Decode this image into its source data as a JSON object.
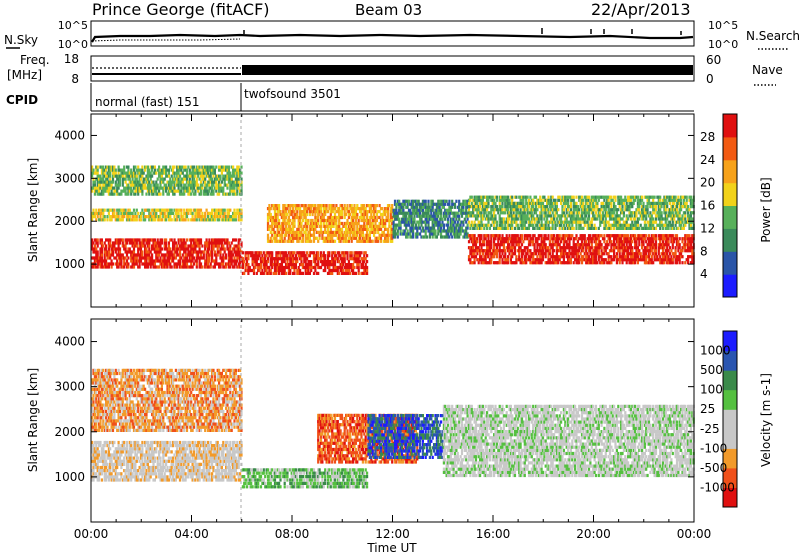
{
  "header": {
    "station": "Prince George (fitACF)",
    "beam": "Beam 03",
    "date": "22/Apr/2013"
  },
  "noise_panel": {
    "left_label": "N.Sky",
    "right_label": "N.Search",
    "left_ticks": [
      "10^5",
      "10^0"
    ],
    "right_ticks": [
      "10^5",
      "10^0"
    ]
  },
  "freq_panel": {
    "left_label_1": "Freq.",
    "left_label_2": "[MHz]",
    "left_ticks": [
      "18",
      "8"
    ],
    "right_label": "Nave",
    "right_ticks": [
      "60",
      "0"
    ]
  },
  "cpid_panel": {
    "label": "CPID",
    "modes": [
      {
        "name": "normal (fast) 151",
        "start_hour": 0,
        "end_hour": 6
      },
      {
        "name": "twofsound 3501",
        "start_hour": 6,
        "end_hour": 24
      }
    ]
  },
  "colors": {
    "power_scale": [
      "#1c1cff",
      "#2a55a8",
      "#3a8a5a",
      "#57b05a",
      "#f2d21a",
      "#f7a21a",
      "#f25a12",
      "#e01010"
    ],
    "velocity_scale": [
      "#e01010",
      "#f0501a",
      "#f29a2a",
      "#c8c8c8",
      "#c8c8c8",
      "#55c040",
      "#3a8a4a",
      "#2a55b0",
      "#1c1cff"
    ]
  },
  "chart_data": [
    {
      "type": "heatmap",
      "title": "Power",
      "ylabel": "Slant Range [km]",
      "xlabel": "Time UT",
      "yticks": [
        "1000",
        "2000",
        "3000",
        "4000"
      ],
      "xticks": [
        "00:00",
        "04:00",
        "08:00",
        "12:00",
        "16:00",
        "20:00",
        "00:00"
      ],
      "ylim": [
        0,
        4500
      ],
      "xlim": [
        0,
        24
      ],
      "colorbar": {
        "label": "Power [dB]",
        "ticks": [
          "4",
          "8",
          "12",
          "16",
          "20",
          "24",
          "28"
        ]
      },
      "bands": [
        {
          "t0": 0,
          "t1": 6,
          "r0": 900,
          "r1": 1600,
          "level": 7
        },
        {
          "t0": 0,
          "t1": 6,
          "r0": 2000,
          "r1": 2300,
          "level": 4
        },
        {
          "t0": 0,
          "t1": 6,
          "r0": 2600,
          "r1": 3300,
          "level": 3
        },
        {
          "t0": 6,
          "t1": 11,
          "r0": 750,
          "r1": 1300,
          "level": 7
        },
        {
          "t0": 7,
          "t1": 12,
          "r0": 1500,
          "r1": 2400,
          "level": 5
        },
        {
          "t0": 12,
          "t1": 15,
          "r0": 1600,
          "r1": 2500,
          "level": 2
        },
        {
          "t0": 15,
          "t1": 24,
          "r0": 1000,
          "r1": 1700,
          "level": 7
        },
        {
          "t0": 15,
          "t1": 24,
          "r0": 1800,
          "r1": 2600,
          "level": 3
        }
      ]
    },
    {
      "type": "heatmap",
      "title": "Velocity",
      "ylabel": "Slant Range [km]",
      "xlabel": "Time UT",
      "yticks": [
        "1000",
        "2000",
        "3000",
        "4000"
      ],
      "xticks": [
        "00:00",
        "04:00",
        "08:00",
        "12:00",
        "16:00",
        "20:00",
        "00:00"
      ],
      "ylim": [
        0,
        4500
      ],
      "xlim": [
        0,
        24
      ],
      "colorbar": {
        "label": "Velocity [m s-1]",
        "ticks": [
          "1000",
          "500",
          "100",
          "25",
          "-25",
          "-100",
          "-500",
          "-1000"
        ]
      },
      "bands": [
        {
          "t0": 0,
          "t1": 6,
          "r0": 900,
          "r1": 1800,
          "level": 3
        },
        {
          "t0": 0,
          "t1": 6,
          "r0": 2000,
          "r1": 3400,
          "level": 2
        },
        {
          "t0": 6,
          "t1": 11,
          "r0": 750,
          "r1": 1200,
          "level": 5
        },
        {
          "t0": 9,
          "t1": 13,
          "r0": 1300,
          "r1": 2400,
          "level": 1
        },
        {
          "t0": 11,
          "t1": 14,
          "r0": 1400,
          "r1": 2400,
          "level": 7
        },
        {
          "t0": 14,
          "t1": 24,
          "r0": 1000,
          "r1": 2600,
          "level": 4
        }
      ]
    }
  ]
}
